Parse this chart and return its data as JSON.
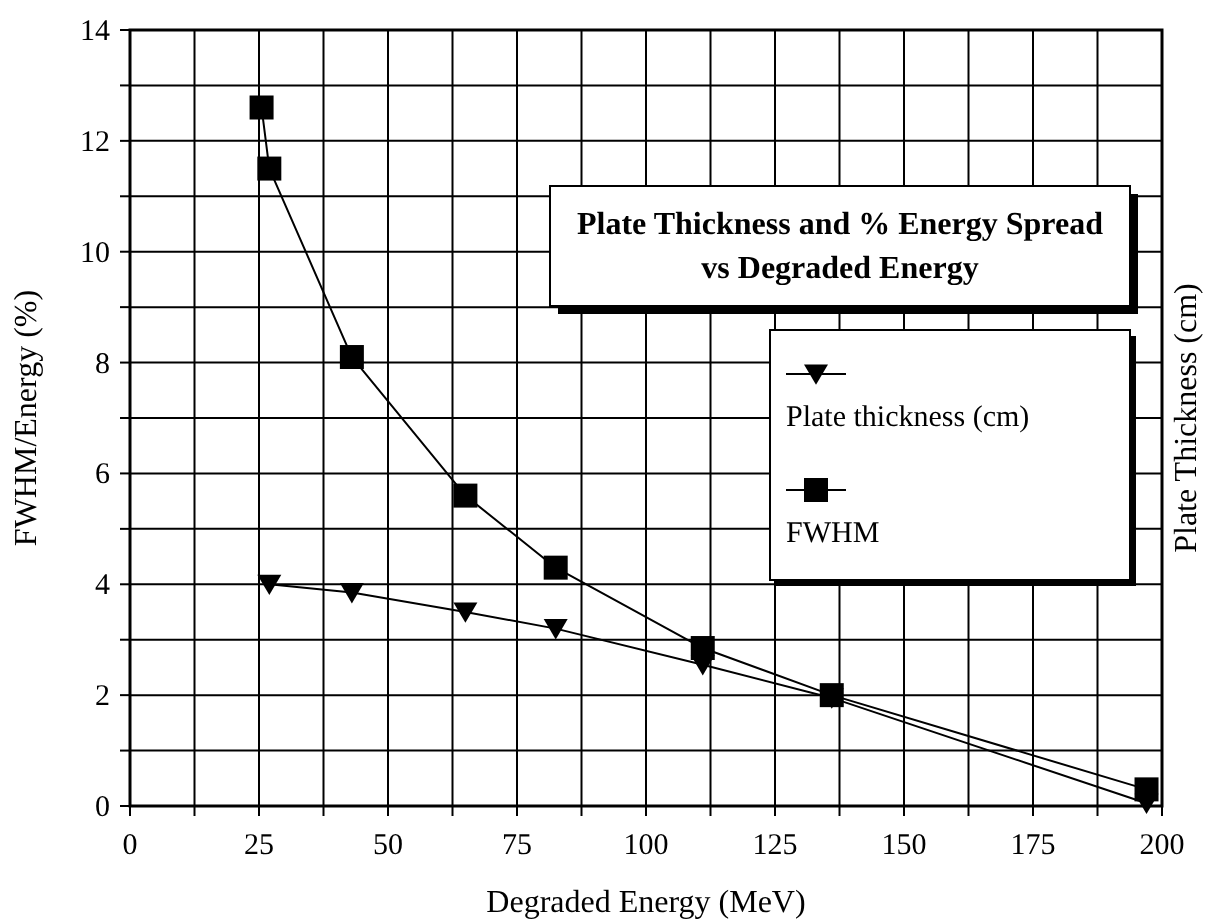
{
  "chart_data": {
    "type": "line",
    "title": "Plate Thickness and % Energy Spread vs Degraded Energy",
    "xlabel": "Degraded Energy (MeV)",
    "ylabel": "FWHM/Energy (%)",
    "y2label": "Plate Thickness (cm)",
    "series": [
      {
        "name": "Plate thickness (cm)",
        "color": "#000000",
        "marker": "triangle",
        "x": [
          27,
          43,
          65,
          82.5,
          111,
          136,
          197
        ],
        "values": [
          4.0,
          3.85,
          3.5,
          3.2,
          2.55,
          1.95,
          0.05
        ]
      },
      {
        "name": "FWHM",
        "color": "#000000",
        "marker": "square",
        "x": [
          25.5,
          27,
          43,
          65,
          82.5,
          111,
          136,
          197
        ],
        "values": [
          12.6,
          11.5,
          8.1,
          5.6,
          4.3,
          2.85,
          2.0,
          0.3
        ]
      }
    ],
    "xlim": [
      0,
      200
    ],
    "xticks": [
      0,
      {
        "value": 12.5,
        "label": null
      },
      25,
      {
        "value": 37.5,
        "label": null
      },
      50,
      {
        "value": 62.5,
        "label": null
      },
      75,
      {
        "value": 87.5,
        "label": null
      },
      100,
      {
        "value": 112.5,
        "label": null
      },
      125,
      {
        "value": 137.5,
        "label": null
      },
      150,
      {
        "value": 162.5,
        "label": null
      },
      175,
      {
        "value": 187.5,
        "label": null
      },
      200
    ],
    "ylim": [
      0,
      14
    ],
    "yticks": [
      0,
      {
        "value": 1,
        "label": null
      },
      2,
      {
        "value": 3,
        "label": null
      },
      4,
      {
        "value": 5,
        "label": null
      },
      6,
      {
        "value": 7,
        "label": null
      },
      8,
      {
        "value": 9,
        "label": null
      },
      10,
      {
        "value": 11,
        "label": null
      },
      12,
      {
        "value": 13,
        "label": null
      },
      14
    ],
    "grid": true,
    "legend": "right",
    "line_style": "solid"
  }
}
